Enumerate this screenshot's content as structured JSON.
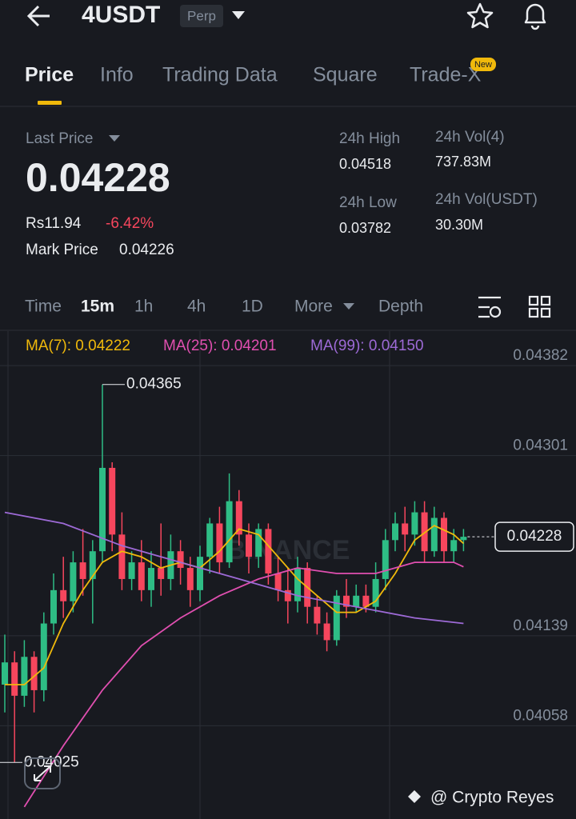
{
  "header": {
    "title": "4USDT",
    "badge": "Perp"
  },
  "tabs": [
    "Price",
    "Info",
    "Trading Data",
    "Square",
    "Trade-X"
  ],
  "tab_badge": "New",
  "stats": {
    "last_price_label": "Last Price",
    "last_price": "0.04228",
    "local_price": "Rs11.94",
    "change": "-6.42%",
    "mark_price_label": "Mark Price",
    "mark_price": "0.04226",
    "high_label": "24h High",
    "high": "0.04518",
    "low_label": "24h Low",
    "low": "0.03782",
    "vol_label": "24h Vol(4)",
    "vol": "737.83M",
    "vol_usdt_label": "24h Vol(USDT)",
    "vol_usdt": "30.30M"
  },
  "intervals": [
    "Time",
    "15m",
    "1h",
    "4h",
    "1D",
    "More",
    "Depth"
  ],
  "chart": {
    "type": "candlestick",
    "ylim": [
      0.03977,
      0.04413
    ],
    "yticks": [
      0.04382,
      0.04301,
      0.04139,
      0.04058
    ],
    "high_marker": 0.04365,
    "low_marker": 0.04025,
    "current_price": 0.04228,
    "up_color": "#2ebd85",
    "down_color": "#f6465d",
    "open": [
      0.04095,
      0.04115,
      0.04085,
      0.0412,
      0.0409,
      0.0415,
      0.0418,
      0.0417,
      0.04205,
      0.0419,
      0.04215,
      0.0429,
      0.0423,
      0.0419,
      0.04205,
      0.0418,
      0.042,
      0.0419,
      0.04215,
      0.042,
      0.0418,
      0.0421,
      0.0424,
      0.04205,
      0.0426,
      0.0423,
      0.0421,
      0.04235,
      0.04195,
      0.0418,
      0.0417,
      0.042,
      0.04165,
      0.0415,
      0.04135,
      0.04175,
      0.04165,
      0.04175,
      0.04165,
      0.0419,
      0.04225,
      0.0424,
      0.0423,
      0.0425,
      0.04215,
      0.04245,
      0.04215,
      0.04225
    ],
    "high": [
      0.0414,
      0.04125,
      0.04135,
      0.04125,
      0.0416,
      0.04195,
      0.0421,
      0.04215,
      0.04235,
      0.04225,
      0.04365,
      0.04295,
      0.0425,
      0.04215,
      0.04225,
      0.04215,
      0.0424,
      0.0423,
      0.04225,
      0.0421,
      0.0422,
      0.04245,
      0.04255,
      0.04285,
      0.0427,
      0.0424,
      0.0424,
      0.0424,
      0.0421,
      0.042,
      0.0421,
      0.04205,
      0.04175,
      0.0416,
      0.0418,
      0.0419,
      0.04185,
      0.04185,
      0.04205,
      0.04235,
      0.0425,
      0.04255,
      0.0426,
      0.0426,
      0.04255,
      0.0425,
      0.04235,
      0.04235
    ],
    "low": [
      0.0407,
      0.04025,
      0.04075,
      0.0407,
      0.0408,
      0.0414,
      0.04155,
      0.0416,
      0.04175,
      0.0415,
      0.04205,
      0.04215,
      0.0418,
      0.0418,
      0.0417,
      0.04165,
      0.04175,
      0.0418,
      0.04185,
      0.04165,
      0.0417,
      0.04195,
      0.04195,
      0.042,
      0.0422,
      0.04195,
      0.042,
      0.04185,
      0.0417,
      0.0415,
      0.0416,
      0.0415,
      0.0414,
      0.04125,
      0.0413,
      0.04155,
      0.0416,
      0.0416,
      0.0416,
      0.0418,
      0.04215,
      0.04215,
      0.0422,
      0.04205,
      0.0421,
      0.04205,
      0.04205,
      0.04215
    ],
    "close": [
      0.04115,
      0.04085,
      0.0412,
      0.0409,
      0.0415,
      0.0418,
      0.0417,
      0.04205,
      0.0419,
      0.04215,
      0.0429,
      0.0423,
      0.0419,
      0.04205,
      0.0418,
      0.042,
      0.0419,
      0.04215,
      0.042,
      0.0418,
      0.0421,
      0.0424,
      0.04205,
      0.0426,
      0.0423,
      0.0421,
      0.04235,
      0.04195,
      0.0418,
      0.0417,
      0.042,
      0.04165,
      0.0415,
      0.04135,
      0.04175,
      0.04165,
      0.04175,
      0.04165,
      0.0419,
      0.04225,
      0.0424,
      0.0423,
      0.0425,
      0.04215,
      0.04245,
      0.04215,
      0.04225,
      0.04228
    ],
    "series": [
      {
        "name": "MA(7): 0.04222",
        "color": "#f0b90b",
        "x": [
          0,
          2,
          4,
          6,
          8,
          10,
          12,
          14,
          16,
          18,
          20,
          22,
          24,
          26,
          28,
          30,
          32,
          34,
          36,
          38,
          40,
          42,
          44,
          46,
          47
        ],
        "values": [
          0.04095,
          0.04095,
          0.0411,
          0.0415,
          0.0418,
          0.04205,
          0.04215,
          0.0421,
          0.042,
          0.04205,
          0.042,
          0.04215,
          0.04235,
          0.0423,
          0.0421,
          0.0419,
          0.04175,
          0.0416,
          0.0416,
          0.0417,
          0.04195,
          0.04225,
          0.04238,
          0.0423,
          0.04222
        ]
      },
      {
        "name": "MA(25): 0.04201",
        "color": "#e04fb0",
        "x": [
          2,
          6,
          10,
          14,
          18,
          22,
          26,
          30,
          34,
          38,
          42,
          46,
          47
        ],
        "values": [
          0.03985,
          0.0404,
          0.0409,
          0.0413,
          0.04155,
          0.04175,
          0.0419,
          0.042,
          0.04195,
          0.04195,
          0.04205,
          0.04205,
          0.04201
        ]
      },
      {
        "name": "MA(99): 0.04150",
        "color": "#9d6ad6",
        "x": [
          0,
          6,
          12,
          18,
          24,
          30,
          36,
          42,
          47
        ],
        "values": [
          0.0425,
          0.0424,
          0.0422,
          0.04205,
          0.0419,
          0.04175,
          0.04165,
          0.04155,
          0.0415
        ]
      }
    ]
  },
  "credit": "@ Crypto Reyes"
}
